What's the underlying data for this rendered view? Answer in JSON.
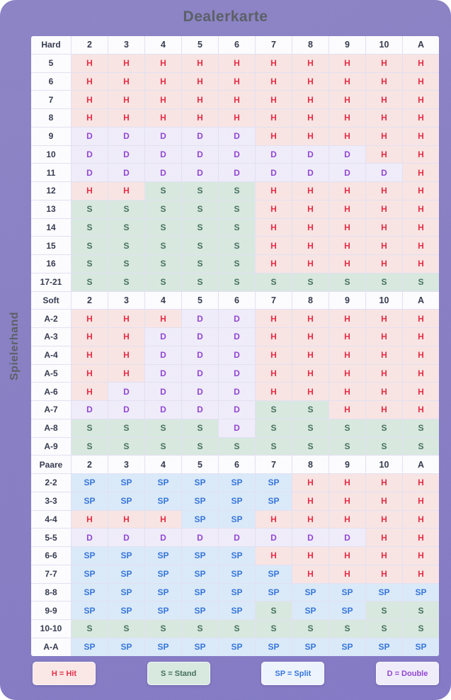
{
  "title": "Dealerkarte",
  "side_label": "Spielerhand",
  "colors": {
    "background": "#857cc2",
    "heading_text": "#565b60",
    "header_cell_text": "#2e3447",
    "hit_bg": "#fbe7e3",
    "hit_text": "#e5273e",
    "stand_bg": "#d9ebdf",
    "stand_text": "#3e6b57",
    "double_bg": "#f2effb",
    "double_text": "#8f3fd1",
    "split_bg": "#dcecfa",
    "split_text": "#2e72d9"
  },
  "chart_data": {
    "type": "heatmap",
    "title": "Dealerkarte",
    "ylabel": "Spielerhand",
    "columns": [
      "2",
      "3",
      "4",
      "5",
      "6",
      "7",
      "8",
      "9",
      "10",
      "A"
    ],
    "sections": [
      {
        "name": "Hard",
        "rows": [
          {
            "label": "5",
            "cells": [
              "H",
              "H",
              "H",
              "H",
              "H",
              "H",
              "H",
              "H",
              "H",
              "H"
            ]
          },
          {
            "label": "6",
            "cells": [
              "H",
              "H",
              "H",
              "H",
              "H",
              "H",
              "H",
              "H",
              "H",
              "H"
            ]
          },
          {
            "label": "7",
            "cells": [
              "H",
              "H",
              "H",
              "H",
              "H",
              "H",
              "H",
              "H",
              "H",
              "H"
            ]
          },
          {
            "label": "8",
            "cells": [
              "H",
              "H",
              "H",
              "H",
              "H",
              "H",
              "H",
              "H",
              "H",
              "H"
            ]
          },
          {
            "label": "9",
            "cells": [
              "D",
              "D",
              "D",
              "D",
              "D",
              "H",
              "H",
              "H",
              "H",
              "H"
            ]
          },
          {
            "label": "10",
            "cells": [
              "D",
              "D",
              "D",
              "D",
              "D",
              "D",
              "D",
              "D",
              "H",
              "H"
            ]
          },
          {
            "label": "11",
            "cells": [
              "D",
              "D",
              "D",
              "D",
              "D",
              "D",
              "D",
              "D",
              "D",
              "H"
            ]
          },
          {
            "label": "12",
            "cells": [
              "H",
              "H",
              "S",
              "S",
              "S",
              "H",
              "H",
              "H",
              "H",
              "H"
            ]
          },
          {
            "label": "13",
            "cells": [
              "S",
              "S",
              "S",
              "S",
              "S",
              "H",
              "H",
              "H",
              "H",
              "H"
            ]
          },
          {
            "label": "14",
            "cells": [
              "S",
              "S",
              "S",
              "S",
              "S",
              "H",
              "H",
              "H",
              "H",
              "H"
            ]
          },
          {
            "label": "15",
            "cells": [
              "S",
              "S",
              "S",
              "S",
              "S",
              "H",
              "H",
              "H",
              "H",
              "H"
            ]
          },
          {
            "label": "16",
            "cells": [
              "S",
              "S",
              "S",
              "S",
              "S",
              "H",
              "H",
              "H",
              "H",
              "H"
            ]
          },
          {
            "label": "17-21",
            "cells": [
              "S",
              "S",
              "S",
              "S",
              "S",
              "S",
              "S",
              "S",
              "S",
              "S"
            ]
          }
        ]
      },
      {
        "name": "Soft",
        "rows": [
          {
            "label": "A-2",
            "cells": [
              "H",
              "H",
              "H",
              "D",
              "D",
              "H",
              "H",
              "H",
              "H",
              "H"
            ]
          },
          {
            "label": "A-3",
            "cells": [
              "H",
              "H",
              "D",
              "D",
              "D",
              "H",
              "H",
              "H",
              "H",
              "H"
            ]
          },
          {
            "label": "A-4",
            "cells": [
              "H",
              "H",
              "D",
              "D",
              "D",
              "H",
              "H",
              "H",
              "H",
              "H"
            ]
          },
          {
            "label": "A-5",
            "cells": [
              "H",
              "H",
              "D",
              "D",
              "D",
              "H",
              "H",
              "H",
              "H",
              "H"
            ]
          },
          {
            "label": "A-6",
            "cells": [
              "H",
              "D",
              "D",
              "D",
              "D",
              "H",
              "H",
              "H",
              "H",
              "H"
            ]
          },
          {
            "label": "A-7",
            "cells": [
              "D",
              "D",
              "D",
              "D",
              "D",
              "S",
              "S",
              "H",
              "H",
              "H"
            ]
          },
          {
            "label": "A-8",
            "cells": [
              "S",
              "S",
              "S",
              "S",
              "D",
              "S",
              "S",
              "S",
              "S",
              "S"
            ]
          },
          {
            "label": "A-9",
            "cells": [
              "S",
              "S",
              "S",
              "S",
              "S",
              "S",
              "S",
              "S",
              "S",
              "S"
            ]
          }
        ]
      },
      {
        "name": "Paare",
        "rows": [
          {
            "label": "2-2",
            "cells": [
              "SP",
              "SP",
              "SP",
              "SP",
              "SP",
              "SP",
              "H",
              "H",
              "H",
              "H"
            ]
          },
          {
            "label": "3-3",
            "cells": [
              "SP",
              "SP",
              "SP",
              "SP",
              "SP",
              "SP",
              "H",
              "H",
              "H",
              "H"
            ]
          },
          {
            "label": "4-4",
            "cells": [
              "H",
              "H",
              "H",
              "SP",
              "SP",
              "H",
              "H",
              "H",
              "H",
              "H"
            ]
          },
          {
            "label": "5-5",
            "cells": [
              "D",
              "D",
              "D",
              "D",
              "D",
              "D",
              "D",
              "D",
              "H",
              "H"
            ]
          },
          {
            "label": "6-6",
            "cells": [
              "SP",
              "SP",
              "SP",
              "SP",
              "SP",
              "H",
              "H",
              "H",
              "H",
              "H"
            ]
          },
          {
            "label": "7-7",
            "cells": [
              "SP",
              "SP",
              "SP",
              "SP",
              "SP",
              "SP",
              "H",
              "H",
              "H",
              "H"
            ]
          },
          {
            "label": "8-8",
            "cells": [
              "SP",
              "SP",
              "SP",
              "SP",
              "SP",
              "SP",
              "SP",
              "SP",
              "SP",
              "SP"
            ]
          },
          {
            "label": "9-9",
            "cells": [
              "SP",
              "SP",
              "SP",
              "SP",
              "SP",
              "S",
              "SP",
              "SP",
              "S",
              "S"
            ]
          },
          {
            "label": "10-10",
            "cells": [
              "S",
              "S",
              "S",
              "S",
              "S",
              "S",
              "S",
              "S",
              "S",
              "S"
            ]
          },
          {
            "label": "A-A",
            "cells": [
              "SP",
              "SP",
              "SP",
              "SP",
              "SP",
              "SP",
              "SP",
              "SP",
              "SP",
              "SP"
            ]
          }
        ]
      }
    ],
    "legend": [
      {
        "type": "H",
        "text": "H = Hit"
      },
      {
        "type": "S",
        "text": "S = Stand"
      },
      {
        "type": "SP",
        "text": "SP = Split"
      },
      {
        "type": "D",
        "text": "D = Double"
      }
    ]
  }
}
